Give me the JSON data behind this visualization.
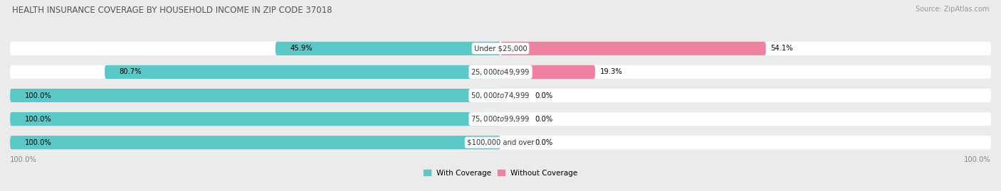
{
  "title": "HEALTH INSURANCE COVERAGE BY HOUSEHOLD INCOME IN ZIP CODE 37018",
  "source": "Source: ZipAtlas.com",
  "categories": [
    "Under $25,000",
    "$25,000 to $49,999",
    "$50,000 to $74,999",
    "$75,000 to $99,999",
    "$100,000 and over"
  ],
  "with_coverage": [
    45.9,
    80.7,
    100.0,
    100.0,
    100.0
  ],
  "without_coverage": [
    54.1,
    19.3,
    0.0,
    0.0,
    0.0
  ],
  "color_with": "#5bc8c8",
  "color_without": "#f080a0",
  "bg_color": "#ebebeb",
  "bar_bg_color": "#ffffff",
  "title_fontsize": 8.5,
  "label_fontsize": 7.2,
  "legend_fontsize": 7.5,
  "source_fontsize": 7,
  "bar_height": 0.58,
  "figsize": [
    14.06,
    2.69
  ],
  "dpi": 100
}
